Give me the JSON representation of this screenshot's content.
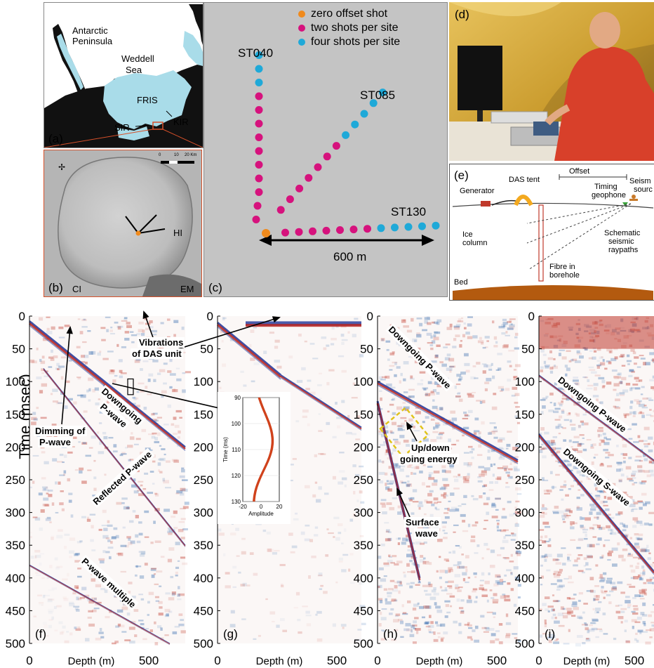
{
  "figure": {
    "panel_a": {
      "tag": "(a)",
      "labels": {
        "peninsula_1": "Antarctic",
        "peninsula_2": "Peninsula",
        "sea_1": "Weddell",
        "sea_2": "Sea",
        "fris": "FRIS",
        "kir": "KIR",
        "sir": "SIR"
      },
      "colors": {
        "ice_shelf": "#a9dce9",
        "land": "#111111",
        "ocean": "#ffffff"
      }
    },
    "panel_b": {
      "tag": "(b)",
      "labels": {
        "ci": "CI",
        "hi": "HI",
        "em": "EM"
      },
      "scale_ticks": [
        "0",
        "10",
        "20 Km"
      ]
    },
    "panel_c": {
      "tag": "(c)",
      "legend": [
        {
          "label": "zero offset shot",
          "color": "#f08a1c"
        },
        {
          "label": "two shots per site",
          "color": "#d6127d"
        },
        {
          "label": "four shots per site",
          "color": "#1fa9d8"
        }
      ],
      "lines": {
        "st040": "ST040",
        "st085": "ST085",
        "st130": "ST130"
      },
      "distance": "600 m",
      "background": "#c4c4c4"
    },
    "panel_d": {
      "tag": "(d)"
    },
    "panel_e": {
      "tag": "(e)",
      "labels": {
        "offset": "Offset",
        "generator": "Generator",
        "das_tent": "DAS tent",
        "timing_1": "Timing",
        "timing_2": "geophone",
        "seismic_1": "Seism",
        "seismic_2": "sourc",
        "ice_1": "Ice",
        "ice_2": "column",
        "schem_1": "Schematic",
        "schem_2": "seismic",
        "schem_3": "raypaths",
        "fibre_1": "Fibre in",
        "fibre_2": "borehole",
        "bed": "Bed"
      }
    },
    "seismic_panels": {
      "ylabel": "Time (msec)",
      "xlabel": "Depth (m)",
      "y_ticks": [
        "0",
        "50",
        "100",
        "150",
        "200",
        "250",
        "300",
        "350",
        "400",
        "450",
        "500"
      ],
      "x_ticks": [
        "0",
        "500"
      ],
      "tags": [
        "(f)",
        "(g)",
        "(h)",
        "(i)"
      ],
      "annotations": {
        "dimming_1": "Dimming of",
        "dimming_2": "P-wave",
        "vibrations_1": "Vibrations",
        "vibrations_2": "of DAS unit",
        "downgoing_f_1": "Downgoing",
        "downgoing_f_2": "P-wave",
        "reflected": "Reflected P-wave",
        "multiple": "P-wave multiple",
        "downgoing_h": "Downgoing P-wave",
        "updown_1": "Up/down",
        "updown_2": "going energy",
        "surface_1": "Surface",
        "surface_2": "wave",
        "downgoing_i_p": "Downgoing P-wave",
        "downgoing_i_s": "Downgoing S-wave"
      }
    },
    "inset": {
      "ylabel": "Time (ms)",
      "xlabel": "Amplitude",
      "y_ticks": [
        "90",
        "100",
        "110",
        "120",
        "130"
      ],
      "x_ticks": [
        "-20",
        "0",
        "20"
      ]
    }
  }
}
